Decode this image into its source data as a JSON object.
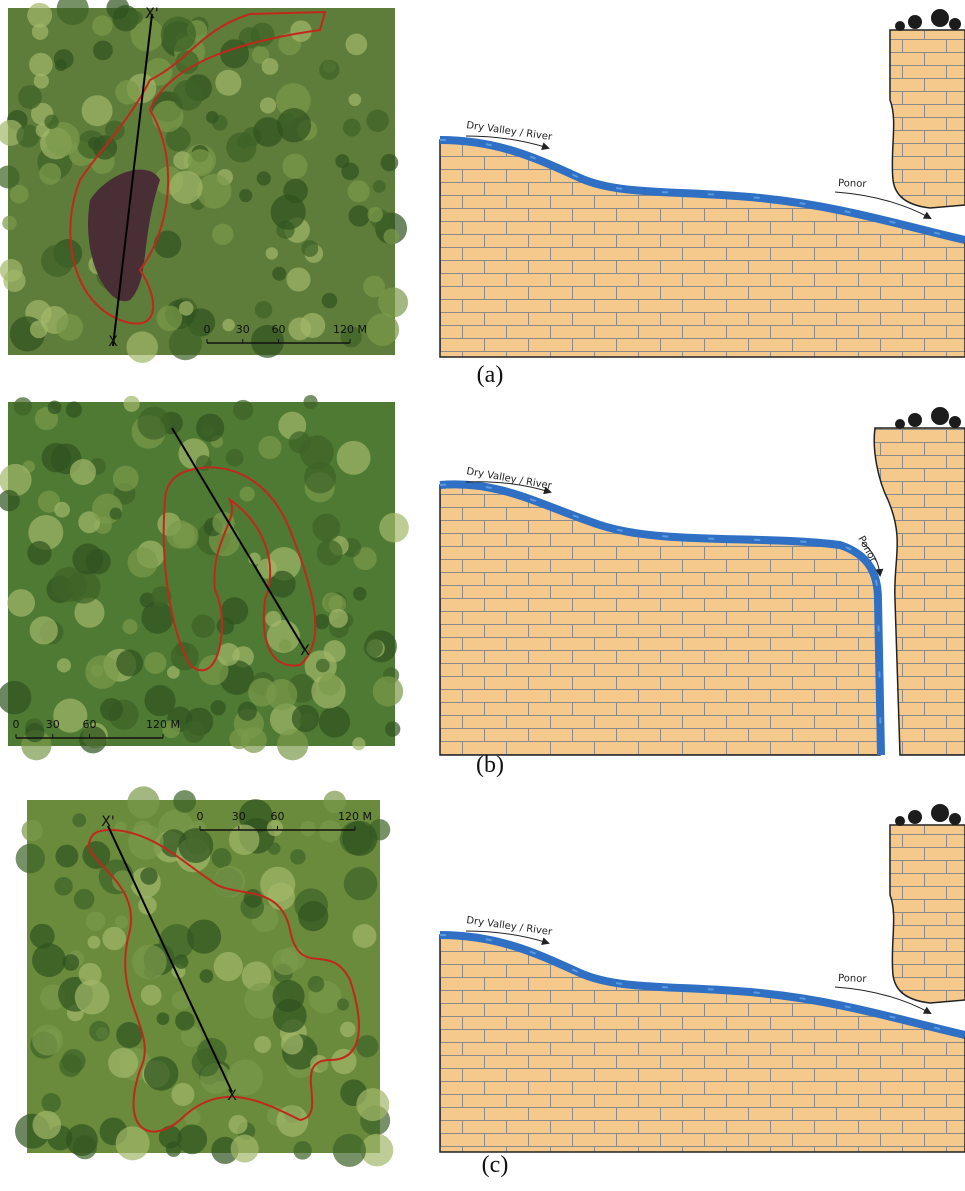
{
  "panels": [
    {
      "label": "(a)",
      "photo": {
        "scale_labels": [
          "0",
          "30",
          "60",
          "120 M"
        ],
        "section_labels": [
          "X'",
          "X"
        ]
      },
      "diagram": {
        "river_label": "Dry Valley / River",
        "sink_label": "Ponor"
      }
    },
    {
      "label": "(b)",
      "photo": {
        "scale_labels": [
          "0",
          "30",
          "60",
          "120 M"
        ],
        "section_labels": [
          "X"
        ]
      },
      "diagram": {
        "river_label": "Dry Valley / River",
        "sink_label": "Ponor"
      }
    },
    {
      "label": "(c)",
      "photo": {
        "scale_labels": [
          "0",
          "30",
          "60",
          "120 M"
        ],
        "section_labels": [
          "X'",
          "X"
        ]
      },
      "diagram": {
        "river_label": "Dry Valley / River",
        "sink_label": "Ponor"
      }
    }
  ]
}
